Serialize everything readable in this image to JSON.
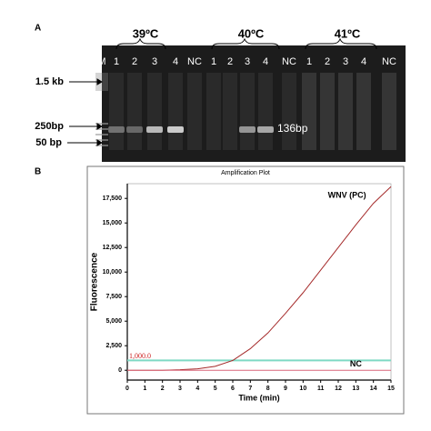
{
  "panel_a": {
    "label": "A",
    "temperatures": [
      "39ºC",
      "40ºC",
      "41ºC"
    ],
    "lanes": [
      "M",
      "1",
      "2",
      "3",
      "4",
      "NC",
      "1",
      "2",
      "3",
      "4",
      "NC",
      "1",
      "2",
      "3",
      "4",
      "NC"
    ],
    "markers": [
      "1.5 kb",
      "250bp",
      "50 bp"
    ],
    "band_label": "136bp"
  },
  "panel_b": {
    "label": "B"
  },
  "chart_data": {
    "type": "line",
    "title": "Amplification Plot",
    "x_label": "Time (min)",
    "y_label": "Fluorescence",
    "x": [
      0,
      1,
      2,
      3,
      4,
      5,
      6,
      7,
      8,
      9,
      10,
      11,
      12,
      13,
      14,
      15
    ],
    "series": [
      {
        "name": "WNV (PC)",
        "color": "#a52a2a",
        "values": [
          0,
          0,
          0,
          50,
          150,
          400,
          1000,
          2200,
          3800,
          5800,
          7900,
          10200,
          12500,
          14800,
          17000,
          18700
        ]
      },
      {
        "name": "NC",
        "color": "#d9667a",
        "values": [
          0,
          0,
          0,
          0,
          0,
          0,
          0,
          0,
          0,
          0,
          0,
          0,
          0,
          0,
          0,
          0
        ]
      }
    ],
    "threshold": {
      "value": 1000,
      "label": "1,000.0",
      "color": "#7fd9c4",
      "label_color": "#cc2222"
    },
    "xlim": [
      0,
      15
    ],
    "xticks": [
      0,
      1,
      2,
      3,
      4,
      5,
      6,
      7,
      8,
      9,
      10,
      11,
      12,
      13,
      14,
      15
    ],
    "ylim": [
      -1000,
      19000
    ],
    "yticks": [
      0,
      {
        "value": 2500,
        "label": "2,500"
      },
      {
        "value": 5000,
        "label": "5,000"
      },
      {
        "value": 7500,
        "label": "7,500"
      },
      {
        "value": 10000,
        "label": "10,000"
      },
      {
        "value": 12500,
        "label": "12,500"
      },
      {
        "value": 15000,
        "label": "15,000"
      },
      {
        "value": 17500,
        "label": "17,500"
      }
    ],
    "grid": false
  }
}
